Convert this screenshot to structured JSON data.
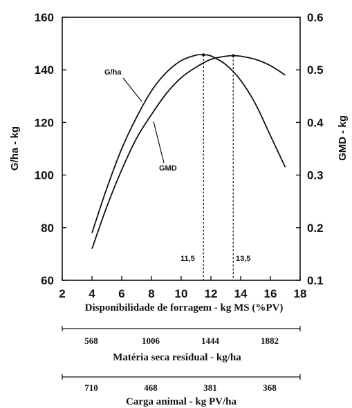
{
  "chart_data": {
    "type": "line",
    "xlabel": "Disponibilidade de forragem - kg MS (%PV)",
    "ylabel_left": "G/ha - kg",
    "ylabel_right": "GMD - kg",
    "xlim": [
      2,
      18
    ],
    "ylim_left": [
      60,
      160
    ],
    "ylim_right": [
      0.1,
      0.6
    ],
    "x_ticks": [
      "2",
      "4",
      "6",
      "8",
      "10",
      "12",
      "14",
      "16",
      "18"
    ],
    "y_ticks_left": [
      "60",
      "80",
      "100",
      "120",
      "140",
      "160"
    ],
    "y_ticks_right": [
      "0.1",
      "0.2",
      "0.3",
      "0.4",
      "0.5",
      "0.6"
    ],
    "grid": false,
    "series": [
      {
        "name": "G/ha",
        "axis": "left",
        "x": [
          4,
          5,
          6,
          7,
          8,
          9,
          10,
          11,
          11.5,
          12,
          13,
          14,
          15,
          16,
          17
        ],
        "y": [
          78,
          95,
          110,
          122,
          132,
          139,
          143.5,
          145.6,
          145.7,
          145.3,
          142,
          136,
          127,
          115,
          103
        ]
      },
      {
        "name": "GMD",
        "axis": "right",
        "x": [
          4,
          5,
          6,
          7,
          8,
          9,
          10,
          11,
          12,
          13,
          13.5,
          14,
          15,
          16,
          17
        ],
        "y": [
          0.16,
          0.24,
          0.31,
          0.37,
          0.415,
          0.455,
          0.485,
          0.505,
          0.52,
          0.526,
          0.527,
          0.526,
          0.52,
          0.508,
          0.49
        ]
      }
    ],
    "annotations": [
      {
        "text": "G/ha",
        "series": "G/ha"
      },
      {
        "text": "GMD",
        "series": "GMD"
      },
      {
        "text": "11,5",
        "x": 11.5
      },
      {
        "text": "13,5",
        "x": 13.5
      }
    ],
    "secondary_axes": [
      {
        "label": "Matéria seca residual - kg/ha",
        "ticks": [
          "568",
          "1006",
          "1444",
          "1882"
        ]
      },
      {
        "label": "Carga animal - kg PV/ha",
        "ticks": [
          "710",
          "468",
          "381",
          "368"
        ]
      }
    ]
  }
}
